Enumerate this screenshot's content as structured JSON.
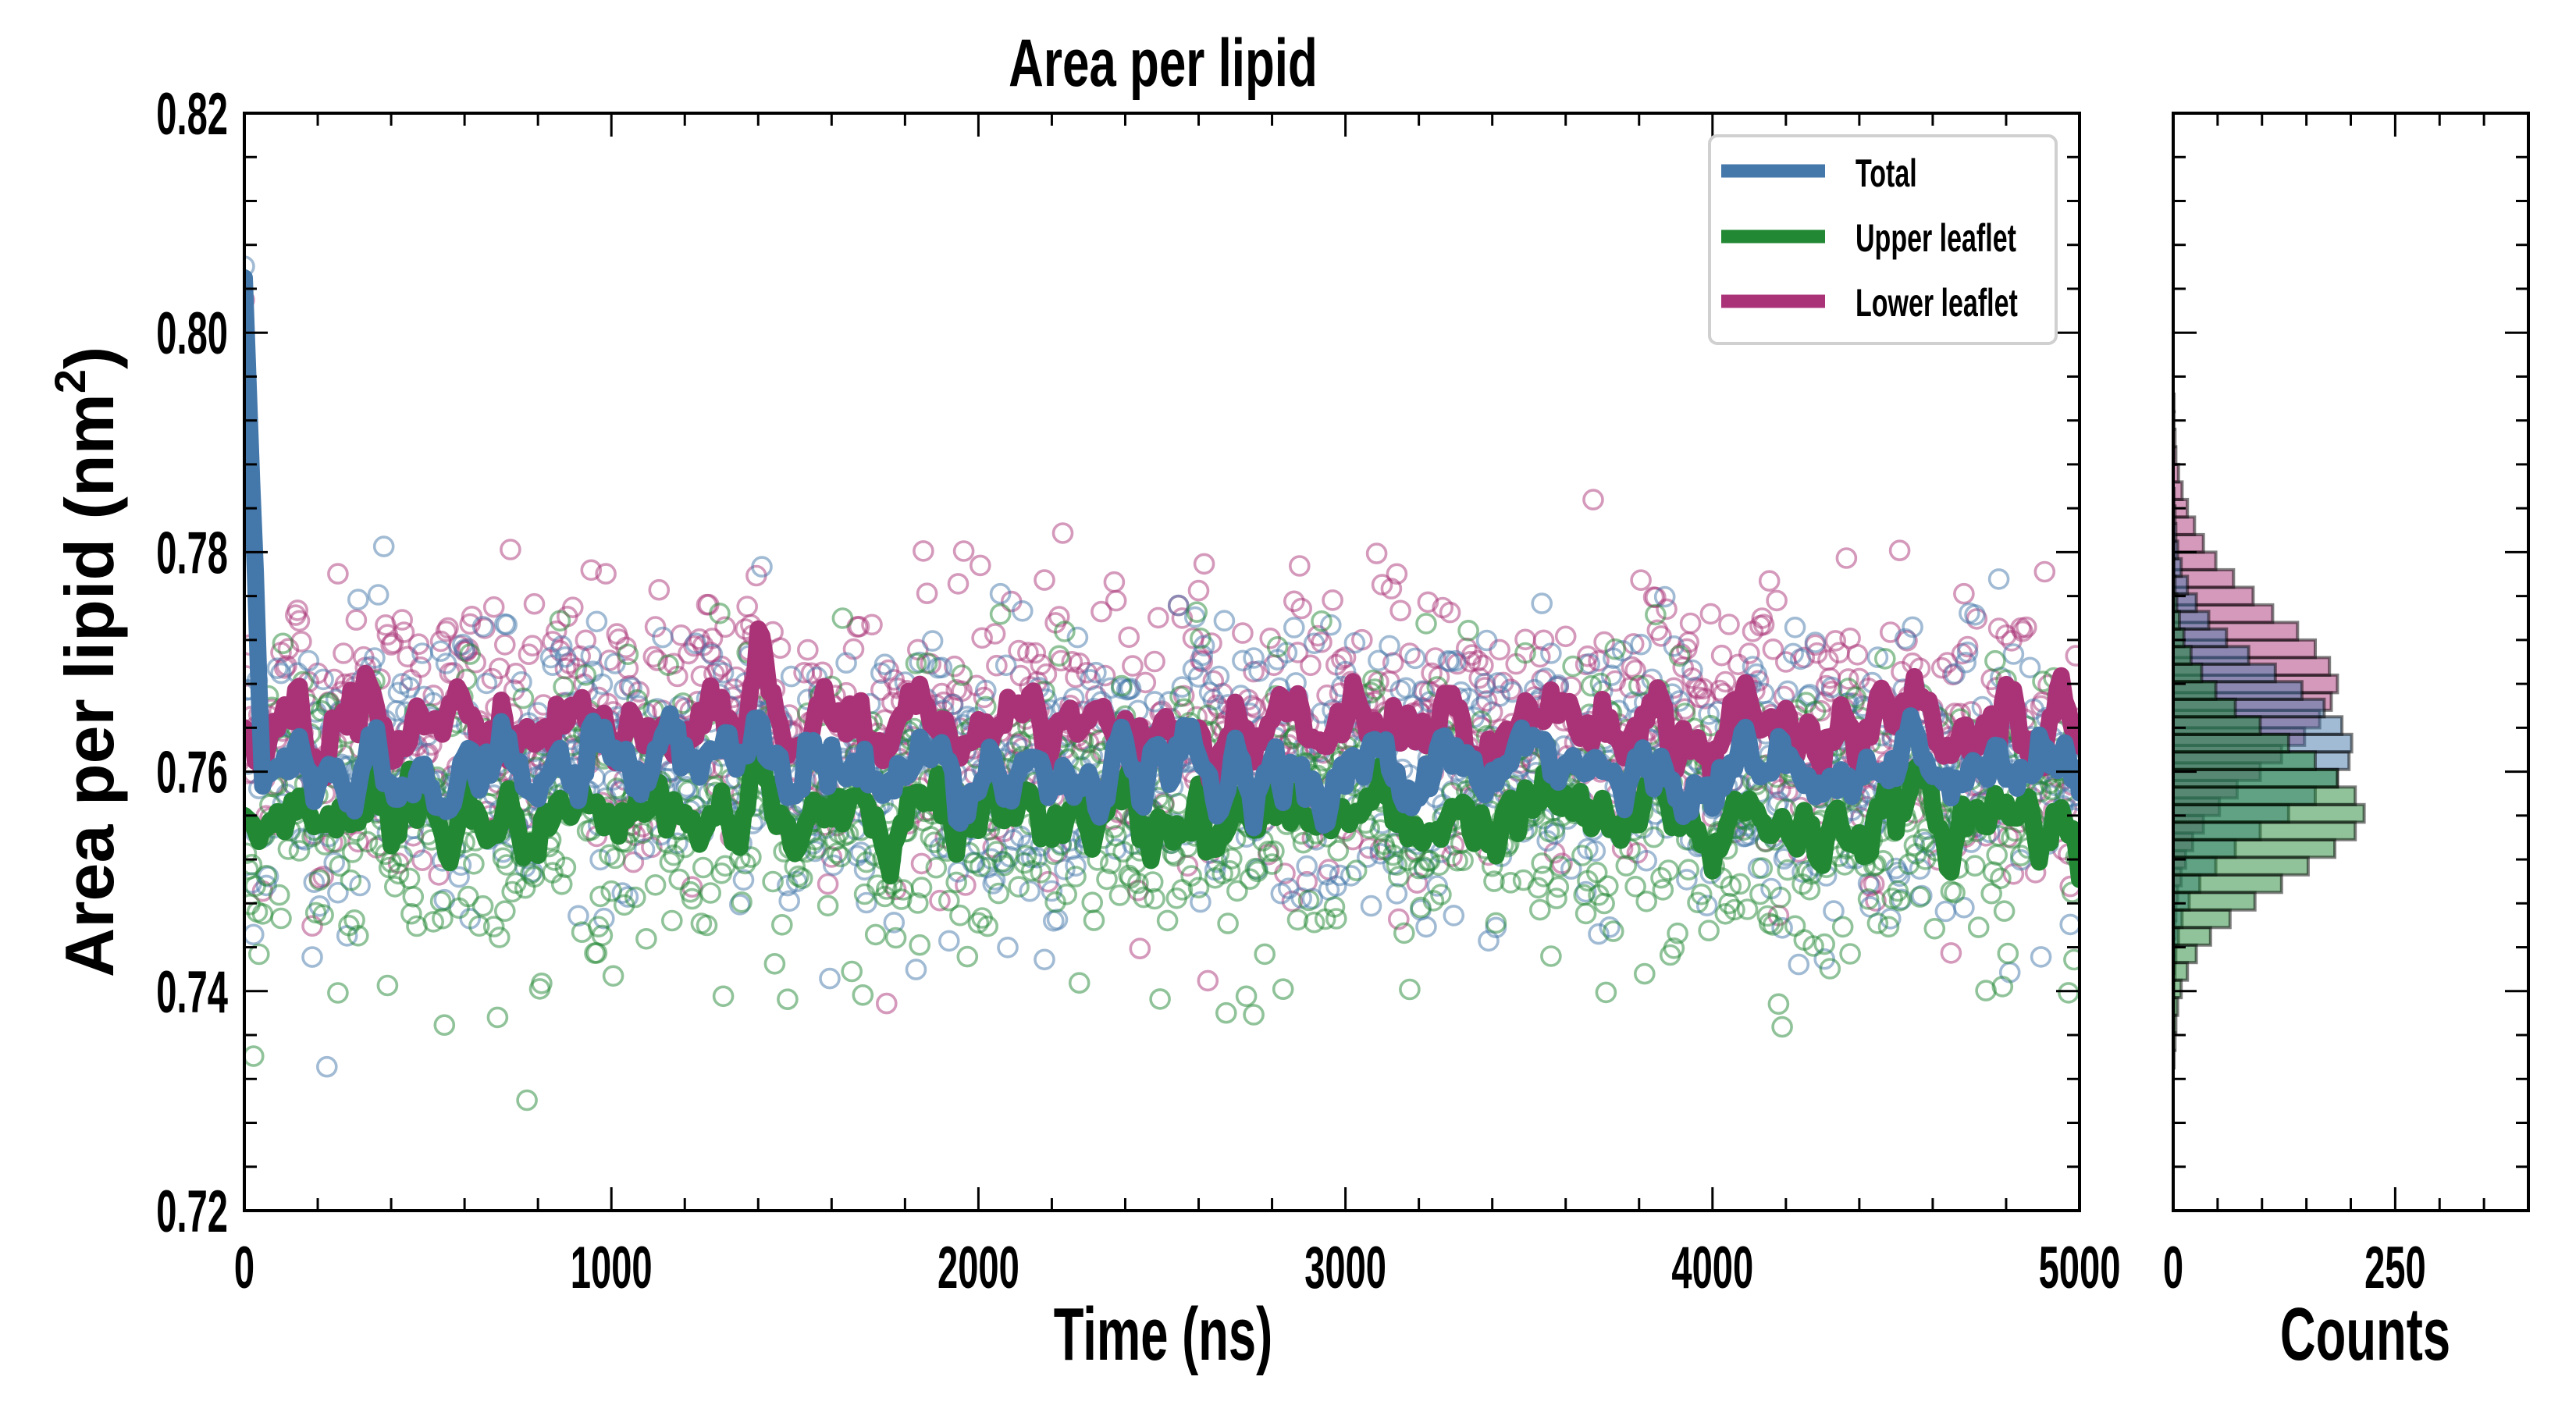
{
  "chart_data": [
    {
      "type": "line",
      "title": "Area per lipid",
      "xlabel": "Time (ns)",
      "ylabel": "Area per lipid (nm",
      "ylabel_sup": "2",
      "ylabel_close": ")",
      "xlim": [
        0,
        5000
      ],
      "ylim": [
        0.72,
        0.82
      ],
      "xticks": [
        0,
        1000,
        2000,
        3000,
        4000,
        5000
      ],
      "xtick_labels": [
        "0",
        "1000",
        "2000",
        "3000",
        "4000",
        "5000"
      ],
      "x_minor_step": 200,
      "yticks": [
        0.72,
        0.74,
        0.76,
        0.78,
        0.8,
        0.82
      ],
      "ytick_labels": [
        "0.72",
        "0.74",
        "0.76",
        "0.78",
        "0.80",
        "0.82"
      ],
      "y_minor_step": 0.004,
      "grid": false,
      "legend": {
        "placement": "top-right",
        "entries": [
          "Total",
          "Upper leaflet",
          "Lower leaflet"
        ]
      },
      "x": [
        0,
        50,
        100,
        150,
        200,
        250,
        300,
        350,
        400,
        450,
        500,
        550,
        600,
        650,
        700,
        750,
        800,
        850,
        900,
        950,
        1000,
        1050,
        1100,
        1150,
        1200,
        1250,
        1300,
        1350,
        1400,
        1450,
        1500,
        1550,
        1600,
        1650,
        1700,
        1750,
        1800,
        1850,
        1900,
        1950,
        2000,
        2050,
        2100,
        2150,
        2200,
        2250,
        2300,
        2350,
        2400,
        2450,
        2500,
        2550,
        2600,
        2650,
        2700,
        2750,
        2800,
        2850,
        2900,
        2950,
        3000,
        3050,
        3100,
        3150,
        3200,
        3250,
        3300,
        3350,
        3400,
        3450,
        3500,
        3550,
        3600,
        3650,
        3700,
        3750,
        3800,
        3850,
        3900,
        3950,
        4000,
        4050,
        4100,
        4150,
        4200,
        4250,
        4300,
        4350,
        4400,
        4450,
        4500,
        4550,
        4600,
        4650,
        4700,
        4750,
        4800,
        4850,
        4900,
        4950,
        5000
      ],
      "series": [
        {
          "name": "Total",
          "color": "#4477AA",
          "scatter_spread": 0.0065,
          "values": [
            0.805,
            0.7585,
            0.7605,
            0.762,
            0.7575,
            0.761,
            0.7595,
            0.763,
            0.758,
            0.76,
            0.7615,
            0.759,
            0.7625,
            0.758,
            0.7605,
            0.7595,
            0.757,
            0.761,
            0.76,
            0.762,
            0.759,
            0.7605,
            0.7585,
            0.7615,
            0.76,
            0.761,
            0.763,
            0.759,
            0.766,
            0.76,
            0.758,
            0.7615,
            0.7595,
            0.7605,
            0.7585,
            0.7575,
            0.76,
            0.7615,
            0.759,
            0.758,
            0.76,
            0.761,
            0.7595,
            0.762,
            0.7585,
            0.7605,
            0.76,
            0.759,
            0.7615,
            0.758,
            0.7595,
            0.76,
            0.761,
            0.757,
            0.7605,
            0.759,
            0.76,
            0.7615,
            0.7595,
            0.7585,
            0.7605,
            0.76,
            0.761,
            0.759,
            0.7575,
            0.76,
            0.7615,
            0.7595,
            0.7585,
            0.7605,
            0.76,
            0.762,
            0.761,
            0.759,
            0.76,
            0.7585,
            0.7595,
            0.7615,
            0.7605,
            0.759,
            0.758,
            0.76,
            0.761,
            0.7595,
            0.7605,
            0.759,
            0.757,
            0.76,
            0.7585,
            0.761,
            0.76,
            0.7625,
            0.7595,
            0.758,
            0.7605,
            0.759,
            0.7615,
            0.76,
            0.7585,
            0.7605,
            0.758
          ]
        },
        {
          "name": "Upper leaflet",
          "color": "#228833",
          "scatter_spread": 0.0065,
          "values": [
            0.756,
            0.7545,
            0.757,
            0.758,
            0.7535,
            0.757,
            0.7555,
            0.759,
            0.754,
            0.756,
            0.7575,
            0.755,
            0.7585,
            0.754,
            0.7565,
            0.7555,
            0.753,
            0.757,
            0.756,
            0.758,
            0.755,
            0.7565,
            0.7545,
            0.7575,
            0.756,
            0.757,
            0.759,
            0.755,
            0.762,
            0.756,
            0.754,
            0.7575,
            0.7555,
            0.7565,
            0.7545,
            0.7525,
            0.756,
            0.7575,
            0.755,
            0.754,
            0.756,
            0.757,
            0.7555,
            0.758,
            0.7545,
            0.7565,
            0.756,
            0.755,
            0.7575,
            0.754,
            0.7555,
            0.756,
            0.757,
            0.752,
            0.7565,
            0.755,
            0.756,
            0.7575,
            0.7555,
            0.7545,
            0.7565,
            0.756,
            0.757,
            0.755,
            0.753,
            0.756,
            0.7575,
            0.7555,
            0.7545,
            0.7565,
            0.756,
            0.758,
            0.757,
            0.755,
            0.756,
            0.7545,
            0.7555,
            0.7575,
            0.7565,
            0.755,
            0.753,
            0.756,
            0.757,
            0.7555,
            0.7565,
            0.755,
            0.752,
            0.756,
            0.7545,
            0.757,
            0.756,
            0.7585,
            0.7555,
            0.754,
            0.7565,
            0.755,
            0.7575,
            0.756,
            0.7545,
            0.7565,
            0.753
          ]
        },
        {
          "name": "Lower leaflet",
          "color": "#AA3377",
          "scatter_spread": 0.0065,
          "values": [
            0.764,
            0.7625,
            0.765,
            0.7665,
            0.7615,
            0.765,
            0.7635,
            0.767,
            0.762,
            0.764,
            0.7655,
            0.763,
            0.7665,
            0.762,
            0.7645,
            0.7635,
            0.761,
            0.765,
            0.764,
            0.766,
            0.763,
            0.7645,
            0.7625,
            0.7655,
            0.764,
            0.765,
            0.767,
            0.763,
            0.772,
            0.764,
            0.762,
            0.7655,
            0.7635,
            0.7645,
            0.7625,
            0.7615,
            0.764,
            0.7655,
            0.763,
            0.762,
            0.764,
            0.765,
            0.7635,
            0.766,
            0.7625,
            0.7645,
            0.764,
            0.763,
            0.7655,
            0.762,
            0.7635,
            0.764,
            0.765,
            0.761,
            0.7645,
            0.763,
            0.764,
            0.7655,
            0.7635,
            0.7625,
            0.7645,
            0.764,
            0.765,
            0.763,
            0.7615,
            0.764,
            0.7655,
            0.7635,
            0.7625,
            0.7645,
            0.764,
            0.7665,
            0.765,
            0.763,
            0.764,
            0.7625,
            0.7635,
            0.766,
            0.7645,
            0.763,
            0.762,
            0.764,
            0.765,
            0.7635,
            0.7645,
            0.763,
            0.761,
            0.764,
            0.7625,
            0.765,
            0.764,
            0.7665,
            0.7635,
            0.762,
            0.7645,
            0.763,
            0.766,
            0.764,
            0.7625,
            0.7645,
            0.7615
          ]
        }
      ]
    },
    {
      "type": "bar",
      "orientation": "horizontal",
      "title": "",
      "xlabel": "Counts",
      "ylabel": "",
      "xlim": [
        0,
        400
      ],
      "ylim": [
        0.72,
        0.82
      ],
      "xticks": [
        0,
        250
      ],
      "xtick_labels": [
        "0",
        "250"
      ],
      "x_minor_step": 50,
      "bin_width": 0.0016,
      "series": [
        {
          "name": "Lower leaflet",
          "color": "#AA3377",
          "bin_start": 0.7416,
          "counts": [
            1,
            1,
            2,
            3,
            5,
            9,
            14,
            22,
            34,
            52,
            72,
            98,
            122,
            148,
            165,
            178,
            185,
            176,
            160,
            140,
            112,
            90,
            68,
            48,
            34,
            24,
            16,
            10,
            6,
            3,
            2,
            1,
            1
          ]
        },
        {
          "name": "Total",
          "color": "#4477AA",
          "bin_start": 0.7378,
          "counts": [
            1,
            1,
            2,
            3,
            6,
            10,
            18,
            30,
            48,
            70,
            98,
            130,
            160,
            185,
            198,
            201,
            190,
            170,
            145,
            115,
            85,
            60,
            40,
            26,
            16,
            9,
            5,
            3,
            2,
            1
          ]
        },
        {
          "name": "Upper leaflet",
          "color": "#228833",
          "bin_start": 0.733,
          "counts": [
            1,
            2,
            3,
            5,
            9,
            16,
            26,
            42,
            64,
            92,
            122,
            152,
            182,
            205,
            215,
            205,
            185,
            160,
            130,
            98,
            70,
            48,
            32,
            20,
            12,
            7,
            4,
            2,
            1,
            1
          ]
        }
      ]
    }
  ]
}
